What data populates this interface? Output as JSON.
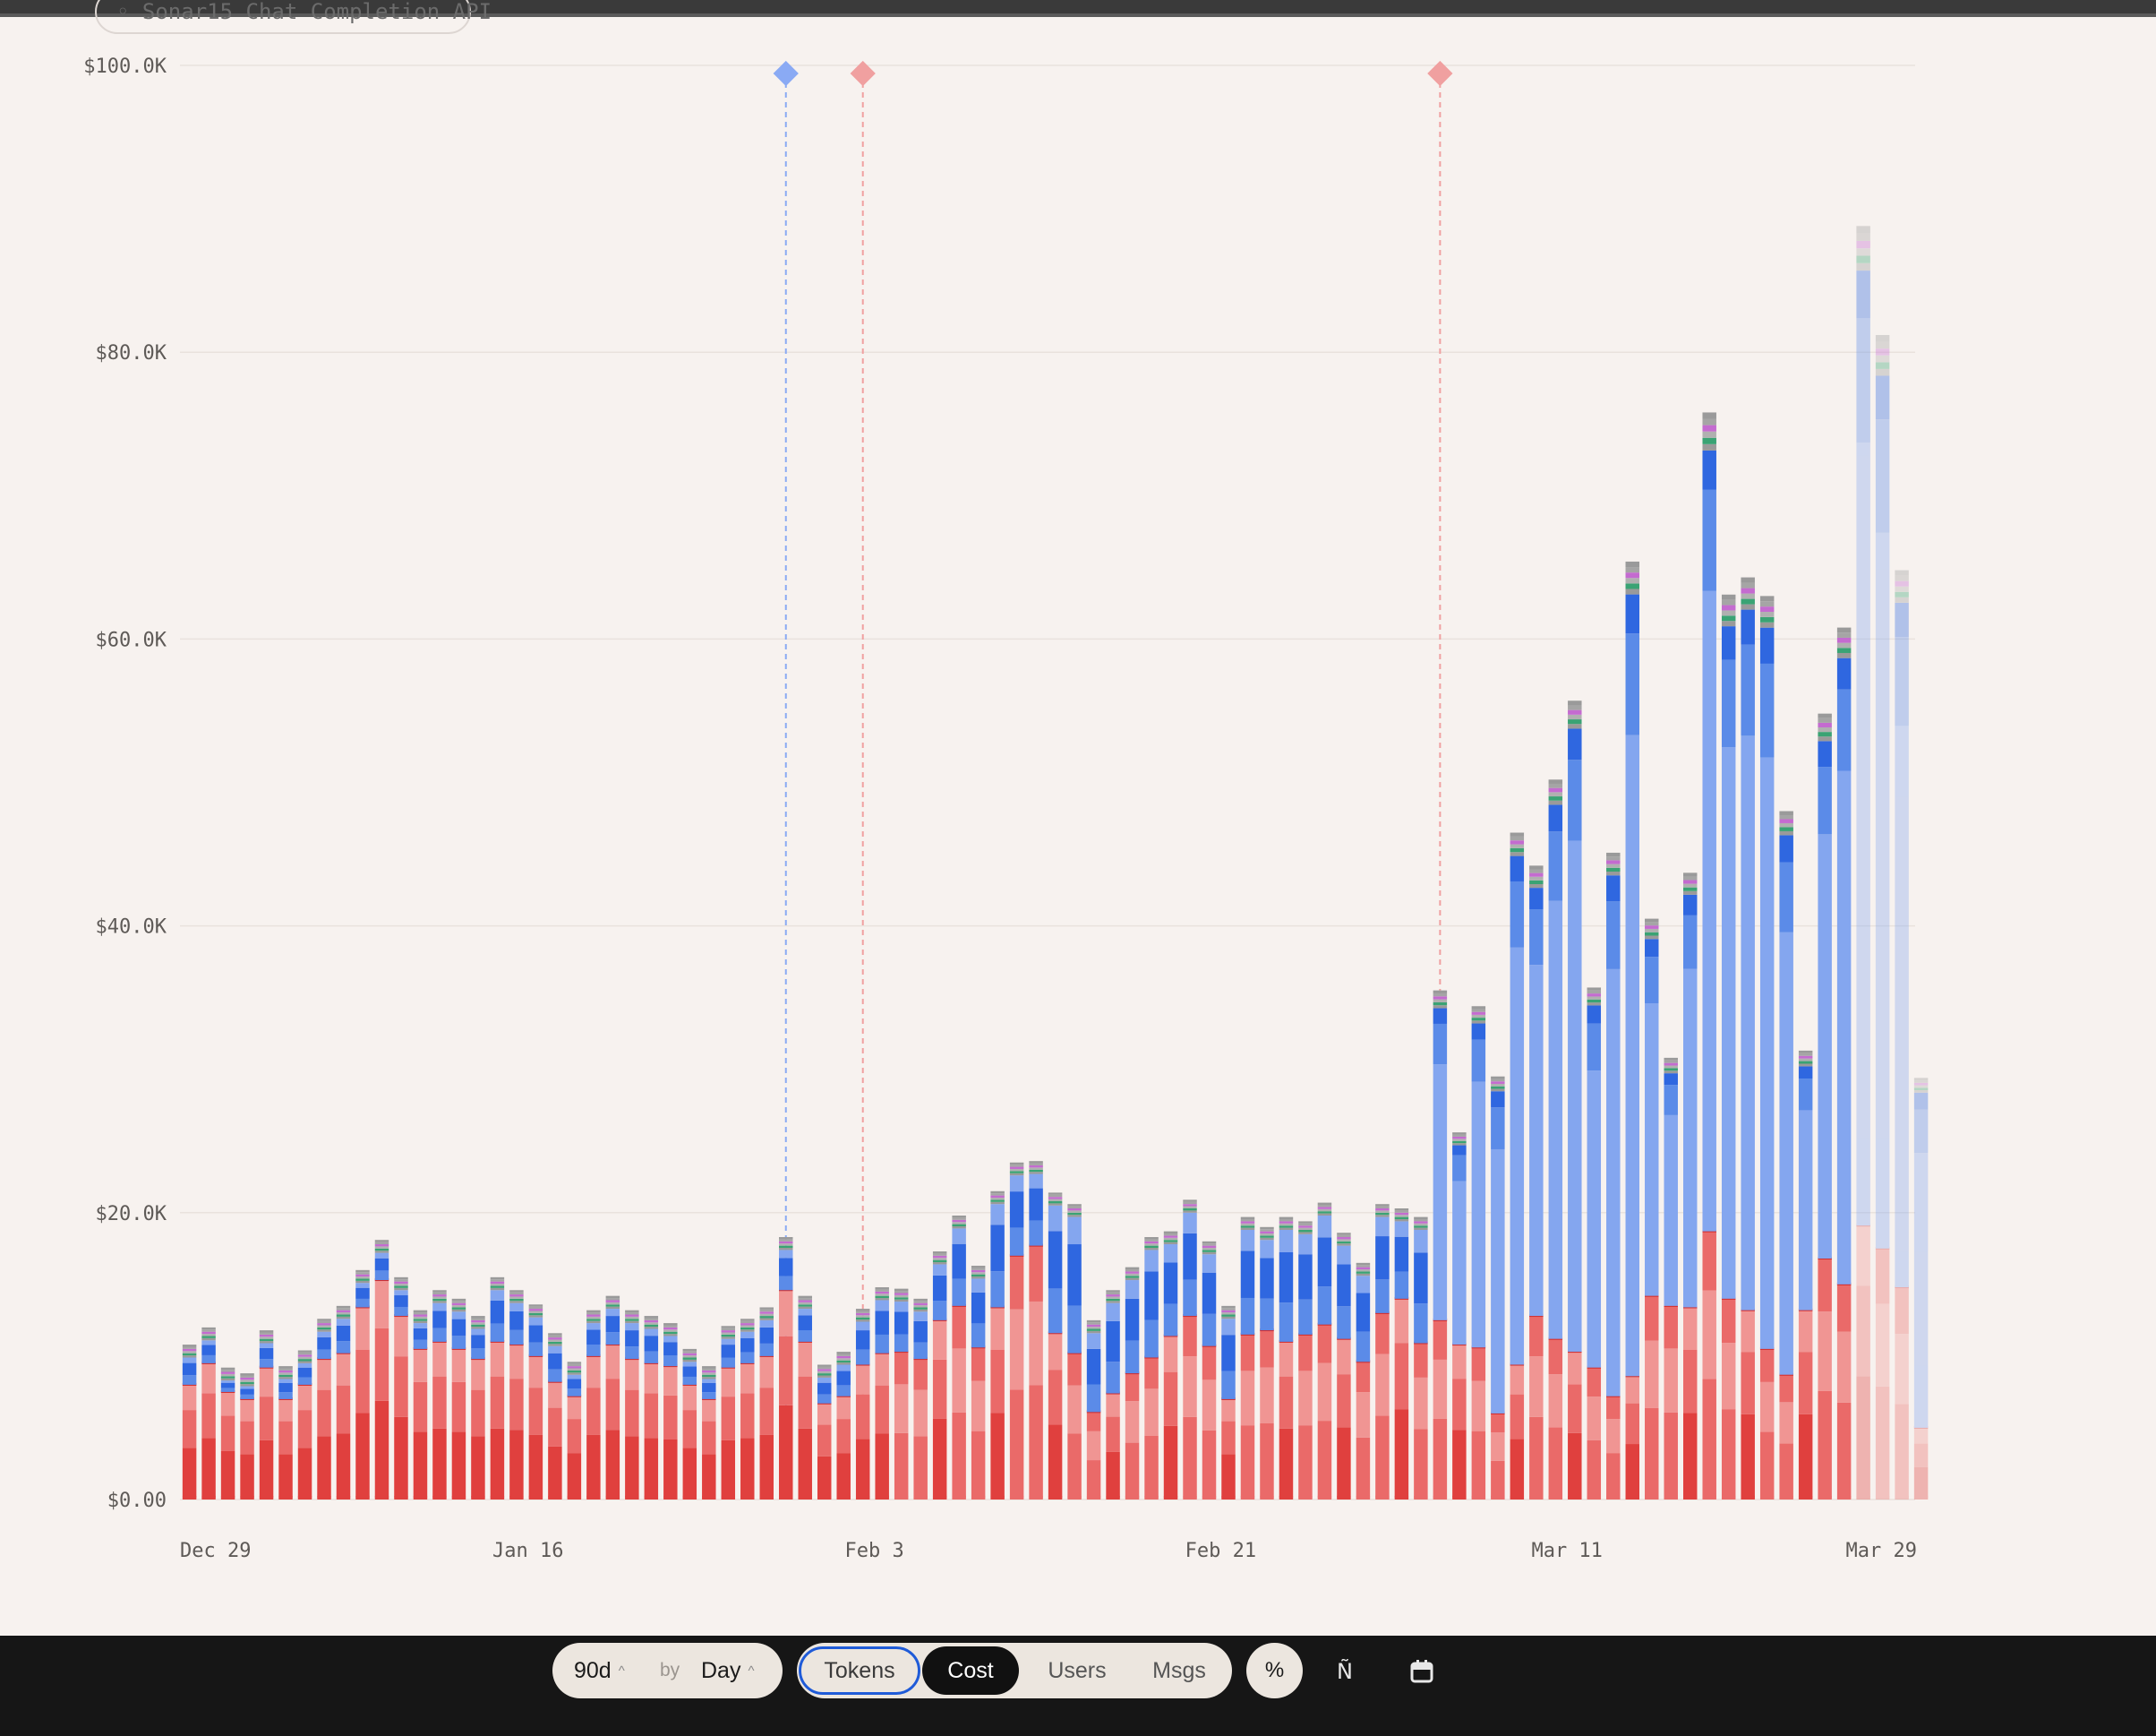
{
  "filter_chip": {
    "label": "◦ Sonar15 Chat Completion API"
  },
  "controls": {
    "range_value": "90d",
    "by_label": "by",
    "granularity": "Day",
    "metric_tabs": [
      "Tokens",
      "Cost",
      "Users",
      "Msgs"
    ],
    "active_metric": "Cost",
    "outlined_metric": "Tokens",
    "percent_label": "%",
    "sort_icon_glyph": "Ñ",
    "icons": [
      "sort-icon",
      "calendar-icon"
    ]
  },
  "colors": {
    "red_dark": "#e0403e",
    "red_mid": "#ea6a69",
    "red_light": "#f09593",
    "blue_dark": "#2f67e0",
    "blue_mid": "#5b8be8",
    "blue_light": "#84a6ef",
    "green": "#3aa374",
    "grey": "#8a8a8a",
    "annotation_blue": "#8aaaf4",
    "annotation_red": "#f0a0a0"
  },
  "chart_data": {
    "type": "bar",
    "stacked": true,
    "title": "",
    "xlabel": "",
    "ylabel": "",
    "ylim": [
      0,
      100000
    ],
    "y_ticks": [
      "$0.00",
      "$20.0K",
      "$40.0K",
      "$60.0K",
      "$80.0K",
      "$100.0K"
    ],
    "x_ticks": [
      {
        "label": "Dec 29",
        "index": 0
      },
      {
        "label": "Jan 16",
        "index": 18
      },
      {
        "label": "Feb 3",
        "index": 36
      },
      {
        "label": "Feb 21",
        "index": 54
      },
      {
        "label": "Mar 11",
        "index": 72
      },
      {
        "label": "Mar 29",
        "index": 90
      }
    ],
    "grid": true,
    "series_note": "stacked components per day: red share (bottom), blue share, small tail of misc models",
    "totals": [
      10800,
      12000,
      9200,
      8800,
      11800,
      9300,
      10400,
      12600,
      13500,
      16000,
      18100,
      15500,
      13200,
      14600,
      14000,
      12800,
      15500,
      14600,
      13600,
      11600,
      9600,
      13200,
      14200,
      13200,
      12800,
      12300,
      10500,
      9300,
      12100,
      12600,
      13400,
      18300,
      14200,
      9400,
      10300,
      13300,
      14800,
      14700,
      14000,
      17300,
      19800,
      16300,
      21500,
      23500,
      23600,
      21400,
      20600,
      12500,
      14600,
      16200,
      18300,
      18700,
      20900,
      18000,
      13500,
      19700,
      19000,
      19700,
      19400,
      20700,
      18600,
      16500,
      20600,
      20300,
      19700,
      35500,
      25600,
      34400,
      29500,
      46500,
      44200,
      50200,
      55700,
      35700,
      45100,
      65400,
      40500,
      30800,
      43700,
      75800,
      63100,
      64300,
      63000,
      48000,
      31300,
      54800,
      60800,
      88800,
      81200,
      64800,
      29400
    ],
    "red_part": [
      8000,
      9500,
      7500,
      7000,
      9200,
      7000,
      8000,
      9800,
      10200,
      13400,
      15300,
      12800,
      10500,
      11000,
      10500,
      9800,
      11000,
      10800,
      10000,
      8200,
      7200,
      10000,
      10800,
      9800,
      9500,
      9300,
      8000,
      7000,
      9200,
      9500,
      10000,
      14600,
      11000,
      6700,
      7200,
      9400,
      10200,
      10300,
      9800,
      12500,
      13500,
      10600,
      13400,
      17000,
      17700,
      11600,
      10200,
      6100,
      7400,
      8800,
      9900,
      11400,
      12800,
      10700,
      7000,
      11500,
      11800,
      11000,
      11500,
      12200,
      11200,
      9600,
      13000,
      14000,
      10900,
      12500,
      10800,
      10600,
      6000,
      9400,
      12800,
      11200,
      10300,
      9200,
      7200,
      8600,
      14200,
      13500,
      13400,
      18700,
      14000,
      13200,
      10500,
      8700,
      13200,
      16800,
      15000,
      19100,
      17500,
      14800,
      5000
    ],
    "projected_start_index": 87,
    "annotations": [
      {
        "index": 31,
        "color": "blue"
      },
      {
        "index": 35,
        "color": "red"
      },
      {
        "index": 65,
        "color": "red"
      }
    ]
  }
}
